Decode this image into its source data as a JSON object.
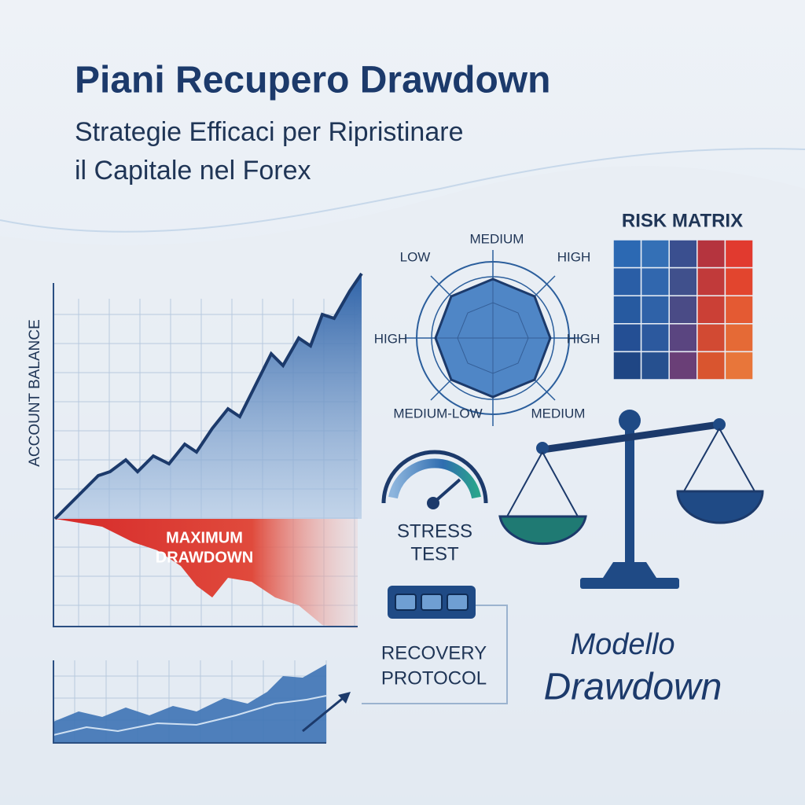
{
  "header": {
    "title": "Piani Recupero Drawdown",
    "subtitle": [
      "Strategie Efficaci per Ripristinare",
      "il Capitale nel Forex"
    ]
  },
  "balance_chart": {
    "axis_label": "ACCOUNT BALANCE",
    "annotation": [
      "MAXIMUM",
      "DRAWDOWN"
    ]
  },
  "radar": {
    "labels": [
      "MEDIUM",
      "LOW",
      "HIGH",
      "HIGH",
      "HIGH",
      "MEDIUM-LOW",
      "MEDIUM"
    ]
  },
  "risk_matrix": {
    "title": "RISK MATRIX"
  },
  "stress_test": {
    "label": [
      "STRESS",
      "TEST"
    ]
  },
  "recovery_protocol": {
    "label": [
      "RECOVERY",
      "PROTOCOL"
    ]
  },
  "model": {
    "lines": [
      "Modello",
      "Drawdown"
    ]
  }
}
